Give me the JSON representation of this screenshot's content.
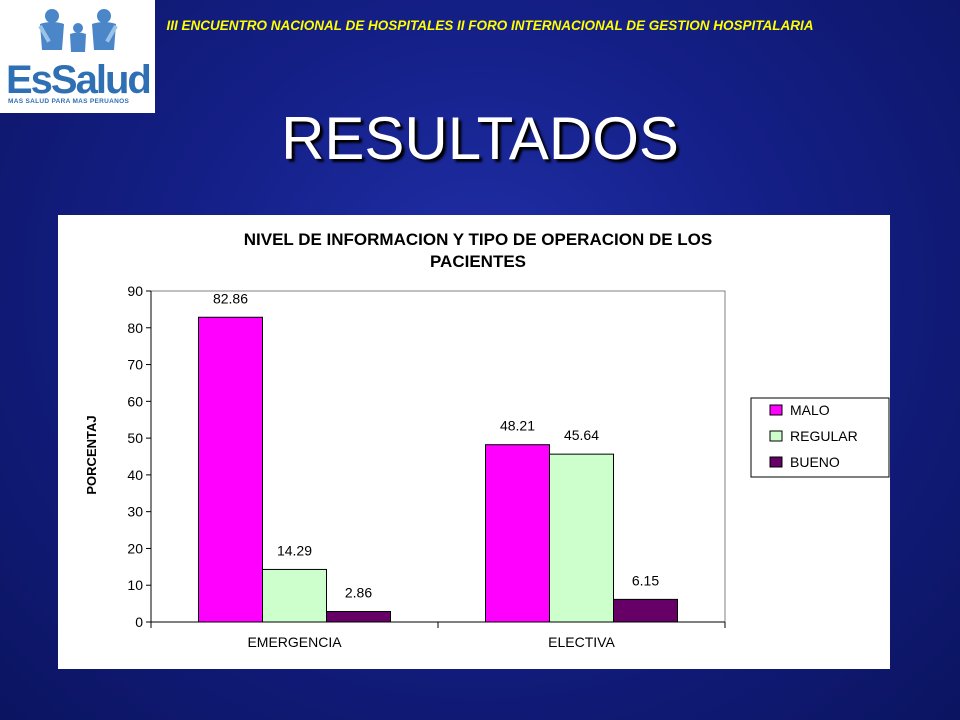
{
  "logo": {
    "name": "EsSalud",
    "tagline": "MAS SALUD PARA MAS PERUANOS"
  },
  "header": {
    "event_title": "III ENCUENTRO NACIONAL DE HOSPITALES II FORO INTERNACIONAL DE GESTION HOSPITALARIA"
  },
  "slide": {
    "title": "RESULTADOS"
  },
  "colors": {
    "malo": "#ff00ff",
    "regular": "#ccffcc",
    "bueno": "#660066",
    "heading": "#ffff00"
  },
  "chart_data": {
    "type": "bar",
    "title_line1": "NIVEL DE INFORMACION Y TIPO DE OPERACION DE LOS",
    "title_line2": "PACIENTES",
    "ylabel": "PORCENTAJ",
    "xlabel": "",
    "ylim": [
      0,
      90
    ],
    "yticks": [
      "0",
      "10",
      "20",
      "30",
      "40",
      "50",
      "60",
      "70",
      "80",
      "90"
    ],
    "categories": [
      "EMERGENCIA",
      "ELECTIVA"
    ],
    "series": [
      {
        "name": "MALO",
        "values": [
          82.86,
          48.21
        ],
        "labels": [
          "82.86",
          "48.21"
        ]
      },
      {
        "name": "REGULAR",
        "values": [
          14.29,
          45.64
        ],
        "labels": [
          "14.29",
          "45.64"
        ]
      },
      {
        "name": "BUENO",
        "values": [
          2.86,
          6.15
        ],
        "labels": [
          "2.86",
          "6.15"
        ]
      }
    ],
    "legend_position": "right",
    "grid": false
  }
}
